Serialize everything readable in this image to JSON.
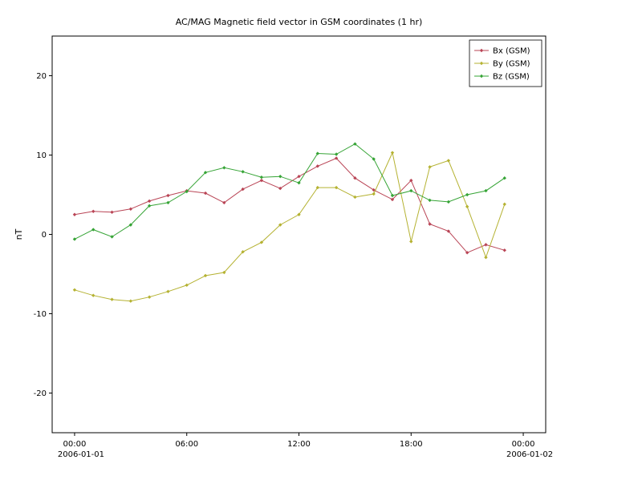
{
  "chart_data": {
    "type": "line",
    "title": "AC/MAG  Magnetic field vector in GSM coordinates (1 hr)",
    "xlabel": "",
    "ylabel": "nT",
    "ylim": [
      -25,
      25
    ],
    "x_range_hours": [
      -1.2,
      25.2
    ],
    "grid": false,
    "legend_position": "upper right",
    "frame_color": "#000000",
    "background_color": "#ffffff",
    "y_ticks": [
      20,
      10,
      0,
      -10,
      -20
    ],
    "x_ticks": [
      {
        "hour": 0,
        "label": "00:00",
        "sublabel": "2006-01-01"
      },
      {
        "hour": 6,
        "label": "06:00"
      },
      {
        "hour": 12,
        "label": "12:00"
      },
      {
        "hour": 18,
        "label": "18:00"
      },
      {
        "hour": 24,
        "label": "00:00",
        "sublabel": "2006-01-02"
      }
    ],
    "x_hours": [
      0,
      1,
      2,
      3,
      4,
      5,
      6,
      7,
      8,
      9,
      10,
      11,
      12,
      13,
      14,
      15,
      16,
      17,
      18,
      19,
      20,
      21,
      22,
      23
    ],
    "series": [
      {
        "name": "Bx (GSM)",
        "color": "#b94455",
        "values": [
          2.5,
          2.9,
          2.8,
          3.2,
          4.2,
          4.9,
          5.5,
          5.2,
          4.0,
          5.7,
          6.8,
          5.8,
          7.3,
          8.6,
          9.6,
          7.1,
          5.6,
          4.4,
          6.8,
          1.3,
          0.4,
          -2.3,
          -1.3,
          -2.0
        ]
      },
      {
        "name": "By (GSM)",
        "color": "#b5b232",
        "values": [
          -7.0,
          -7.7,
          -8.2,
          -8.4,
          -7.9,
          -7.2,
          -6.4,
          -5.2,
          -4.8,
          -2.2,
          -1.0,
          1.2,
          2.5,
          5.9,
          5.9,
          4.7,
          5.1,
          10.3,
          -0.9,
          8.5,
          9.3,
          3.5,
          -2.9,
          3.8
        ]
      },
      {
        "name": "Bz (GSM)",
        "color": "#36a436",
        "values": [
          -0.6,
          0.6,
          -0.3,
          1.2,
          3.6,
          4.0,
          5.4,
          7.8,
          8.4,
          7.9,
          7.2,
          7.3,
          6.5,
          10.2,
          10.1,
          11.4,
          9.5,
          4.9,
          5.5,
          4.3,
          4.1,
          5.0,
          5.5,
          7.1
        ]
      }
    ]
  }
}
